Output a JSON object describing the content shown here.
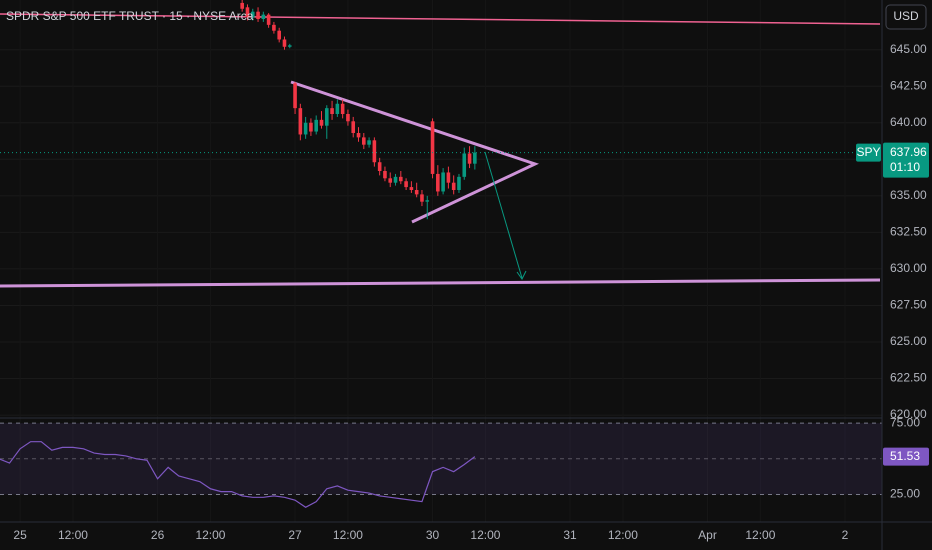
{
  "header": {
    "title": "SPDR S&P 500 ETF TRUST · 15 · NYSE Arca",
    "currency": "USD"
  },
  "chart_data": [
    {
      "type": "candlestick",
      "symbol": "SPY",
      "countdown": "01:10",
      "up_color": "#089981",
      "down_color": "#f23645",
      "x": [
        42,
        43,
        44,
        45,
        46,
        47,
        48,
        49,
        50,
        51,
        52,
        53,
        54,
        55,
        56,
        57,
        58,
        59,
        60,
        61,
        62,
        63,
        64,
        65,
        66,
        67,
        68,
        69,
        70,
        71,
        72,
        73,
        74,
        75,
        76,
        77,
        78,
        79,
        80,
        81,
        82,
        83,
        84,
        85,
        86
      ],
      "open": [
        648.2,
        647.9,
        647.2,
        647.6,
        647.1,
        647.4,
        646.7,
        646.3,
        645.7,
        645.2,
        642.7,
        641.0,
        639.2,
        640.0,
        639.4,
        640.2,
        639.8,
        641.0,
        640.6,
        641.3,
        640.6,
        640.1,
        639.3,
        639.0,
        638.5,
        638.8,
        637.3,
        636.7,
        636.2,
        635.9,
        636.3,
        636.0,
        635.6,
        635.4,
        635.1,
        634.6,
        640.1,
        636.5,
        635.3,
        636.6,
        635.9,
        635.4,
        636.3,
        637.9,
        637.2
      ],
      "high": [
        648.4,
        648.1,
        647.8,
        647.9,
        647.6,
        647.5,
        646.9,
        646.5,
        645.9,
        645.4,
        642.8,
        641.3,
        640.4,
        640.3,
        640.5,
        640.8,
        641.2,
        641.5,
        641.6,
        641.6,
        640.9,
        640.4,
        639.7,
        639.3,
        639.0,
        639.0,
        637.6,
        637.0,
        636.6,
        636.5,
        636.7,
        636.2,
        636.0,
        635.9,
        635.4,
        635.0,
        640.3,
        637.1,
        636.9,
        637.0,
        636.4,
        636.5,
        638.3,
        638.4,
        638.4
      ],
      "low": [
        647.6,
        647.0,
        647.0,
        646.9,
        646.9,
        646.5,
        646.1,
        645.5,
        645.0,
        645.1,
        640.6,
        638.8,
        638.9,
        639.1,
        639.2,
        639.6,
        638.9,
        640.2,
        640.4,
        640.3,
        639.8,
        639.0,
        638.7,
        638.2,
        638.3,
        637.0,
        636.4,
        636.0,
        635.6,
        635.7,
        635.8,
        635.4,
        635.2,
        634.9,
        634.3,
        633.4,
        636.2,
        635.0,
        635.1,
        635.5,
        635.1,
        635.2,
        636.1,
        636.9,
        636.8
      ],
      "close": [
        647.8,
        647.2,
        647.6,
        647.1,
        647.4,
        646.7,
        646.3,
        645.7,
        645.2,
        645.3,
        641.0,
        639.2,
        640.0,
        639.4,
        640.2,
        639.8,
        641.0,
        640.6,
        641.3,
        640.6,
        640.1,
        639.3,
        639.0,
        638.5,
        638.8,
        637.3,
        636.7,
        636.2,
        635.9,
        636.3,
        636.0,
        635.6,
        635.4,
        635.1,
        634.6,
        634.7,
        636.5,
        635.3,
        636.6,
        635.9,
        635.4,
        636.3,
        637.9,
        637.2,
        637.96
      ],
      "xlim": [
        -3.8,
        163
      ],
      "xticks": [
        {
          "value": 0,
          "label": "25"
        },
        {
          "value": 10,
          "label": "12:00"
        },
        {
          "value": 26,
          "label": "26"
        },
        {
          "value": 36,
          "label": "12:00"
        },
        {
          "value": 52,
          "label": "27"
        },
        {
          "value": 62,
          "label": "12:00"
        },
        {
          "value": 78,
          "label": "30"
        },
        {
          "value": 88,
          "label": "12:00"
        },
        {
          "value": 104,
          "label": "31"
        },
        {
          "value": 114,
          "label": "12:00"
        },
        {
          "value": 130,
          "label": "Apr"
        },
        {
          "value": 140,
          "label": "12:00"
        },
        {
          "value": 156,
          "label": "2"
        }
      ],
      "ylim": [
        619.8,
        648.4
      ],
      "yticks": [
        {
          "value": 645,
          "label": "645.00"
        },
        {
          "value": 642.5,
          "label": "642.50"
        },
        {
          "value": 640,
          "label": "640.00"
        },
        {
          "value": 637.5,
          "label": "637.50"
        },
        {
          "value": 635,
          "label": "635.00"
        },
        {
          "value": 632.5,
          "label": "632.50"
        },
        {
          "value": 630,
          "label": "630.00"
        },
        {
          "value": 627.5,
          "label": "627.50"
        },
        {
          "value": 625,
          "label": "625.00"
        },
        {
          "value": 622.5,
          "label": "622.50"
        },
        {
          "value": 620,
          "label": "620.00"
        }
      ]
    },
    {
      "type": "line",
      "color": "#7e57c2",
      "x": [
        -4,
        -2,
        0,
        2,
        4,
        6,
        8,
        10,
        12,
        14,
        16,
        18,
        20,
        22,
        24,
        26,
        28,
        30,
        32,
        34,
        36,
        38,
        40,
        42,
        44,
        46,
        48,
        50,
        52,
        54,
        56,
        58,
        60,
        62,
        64,
        66,
        68,
        70,
        72,
        74,
        76,
        78,
        80,
        82,
        84,
        86
      ],
      "values": [
        50,
        47,
        57,
        62,
        62,
        56,
        58,
        58,
        57,
        54,
        53,
        53,
        52,
        50,
        49,
        36,
        44,
        38,
        36,
        34,
        29,
        27,
        27,
        24,
        23,
        23,
        24,
        23,
        21,
        16,
        20,
        29,
        31,
        28,
        27,
        26,
        24,
        23,
        22,
        21,
        20,
        41,
        44,
        41,
        46,
        51.53
      ],
      "ylim": [
        5.7,
        78.6
      ],
      "yticks": [
        {
          "value": 75,
          "label": "75.00"
        },
        {
          "value": 25,
          "label": "25.00"
        }
      ]
    }
  ]
}
